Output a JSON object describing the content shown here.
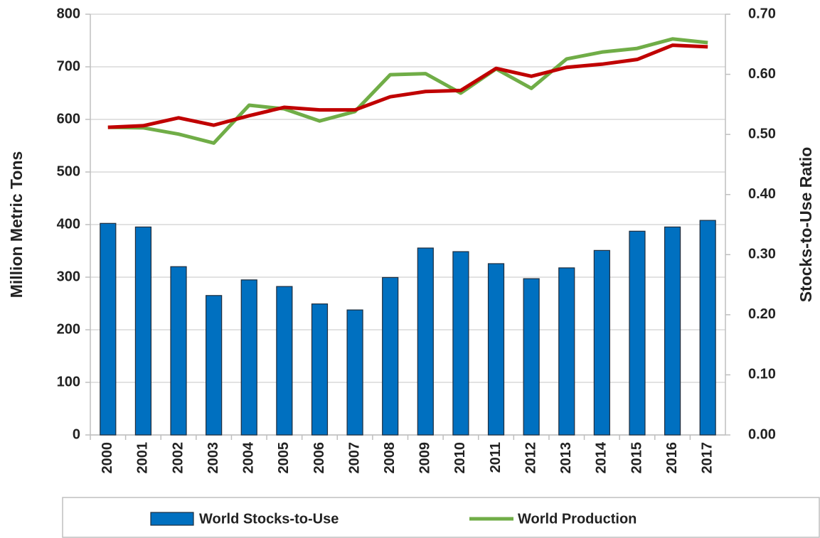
{
  "chart_data": {
    "type": "combo",
    "categories": [
      "2000",
      "2001",
      "2002",
      "2003",
      "2004",
      "2005",
      "2006",
      "2007",
      "2008",
      "2009",
      "2010",
      "2011",
      "2012",
      "2013",
      "2014",
      "2015",
      "2016",
      "2017"
    ],
    "y_label": "Million Metric Tons",
    "y2_label": "Stocks-to-Use Ratio",
    "ylim": [
      0,
      800
    ],
    "yticks": [
      0,
      100,
      200,
      300,
      400,
      500,
      600,
      700,
      800
    ],
    "y2lim": [
      0,
      0.7
    ],
    "y2ticks": [
      {
        "value": 0,
        "label": "0.00"
      },
      {
        "value": 0.1,
        "label": "0.10"
      },
      {
        "value": 0.2,
        "label": "0.20"
      },
      {
        "value": 0.3,
        "label": "0.30"
      },
      {
        "value": 0.4,
        "label": "0.40"
      },
      {
        "value": 0.5,
        "label": "0.50"
      },
      {
        "value": 0.6,
        "label": "0.60"
      },
      {
        "value": 0.7,
        "label": "0.70"
      }
    ],
    "grid": true,
    "series": [
      {
        "name": "World Stocks-to-Use",
        "type": "bar",
        "axis": "y2",
        "color": "#0070c0",
        "values": [
          0.352,
          0.346,
          0.28,
          0.232,
          0.258,
          0.247,
          0.218,
          0.208,
          0.262,
          0.311,
          0.305,
          0.285,
          0.26,
          0.278,
          0.307,
          0.339,
          0.346,
          0.357
        ]
      },
      {
        "name": "World Production",
        "type": "line",
        "color": "#70ad47",
        "values": [
          585,
          584,
          572,
          555,
          627,
          620,
          597,
          615,
          685,
          687,
          650,
          696,
          659,
          715,
          728,
          735,
          753,
          746
        ]
      },
      {
        "type": "line",
        "color": "#c00000",
        "values": [
          585,
          588,
          603,
          589,
          607,
          623,
          618,
          618,
          643,
          653,
          655,
          697,
          682,
          699,
          705,
          714,
          741,
          738
        ]
      }
    ]
  }
}
